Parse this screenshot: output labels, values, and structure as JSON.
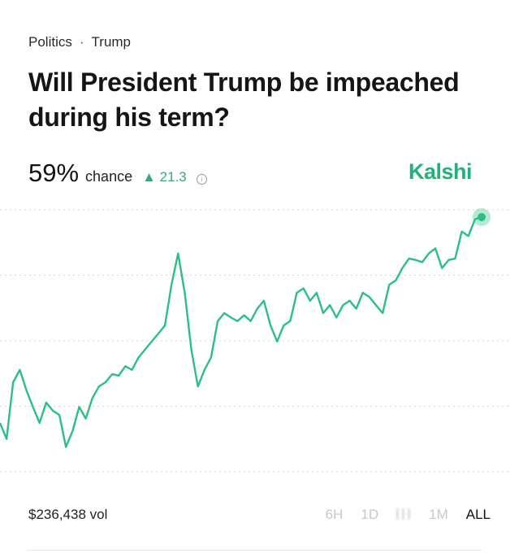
{
  "breadcrumb": {
    "category": "Politics",
    "separator": "·",
    "subcategory": "Trump"
  },
  "title": "Will President Trump be impeached during his term?",
  "stat": {
    "percent": "59%",
    "chance_label": "chance",
    "delta_arrow": "▲",
    "delta": "21.3",
    "info_icon": "info-circle-icon"
  },
  "brand": "Kalshi",
  "colors": {
    "line": "#2bbf85",
    "brand": "#25b07a",
    "delta": "#3aa77a",
    "grid": "#d4d4d4"
  },
  "volume": "$236,438 vol",
  "timeframes": [
    {
      "label": "6H",
      "active": false
    },
    {
      "label": "1D",
      "active": false
    },
    {
      "label": "",
      "active": false
    },
    {
      "label": "1M",
      "active": false
    },
    {
      "label": "ALL",
      "active": true
    }
  ],
  "chart_data": {
    "type": "line",
    "title": "",
    "xlabel": "",
    "ylabel": "",
    "ylim": [
      24,
      60
    ],
    "grid": "horizontal dotted, 5 lines",
    "gridlines": [
      60,
      51,
      42,
      33,
      24
    ],
    "series": [
      {
        "values": [
          30.7,
          28.5,
          36.3,
          38.0,
          35.2,
          32.9,
          30.7,
          33.5,
          32.4,
          31.8,
          27.4,
          29.6,
          32.9,
          31.3,
          34.1,
          35.7,
          36.3,
          37.4,
          37.2,
          38.5,
          38.0,
          39.7,
          40.8,
          41.9,
          43.0,
          44.1,
          49.7,
          54.0,
          48.6,
          40.8,
          35.7,
          38.0,
          39.7,
          44.7,
          45.8,
          45.2,
          44.7,
          45.5,
          44.7,
          46.4,
          47.5,
          44.1,
          41.9,
          44.1,
          44.7,
          48.6,
          49.2,
          47.5,
          48.6,
          45.8,
          46.9,
          45.2,
          46.9,
          47.5,
          46.4,
          48.6,
          48.0,
          46.9,
          45.8,
          49.7,
          50.3,
          52.0,
          53.3,
          53.1,
          52.8,
          54.0,
          54.7,
          52.0,
          53.1,
          53.3,
          57.0,
          56.4,
          58.7,
          59.0
        ]
      }
    ],
    "last_point_marker": true
  }
}
